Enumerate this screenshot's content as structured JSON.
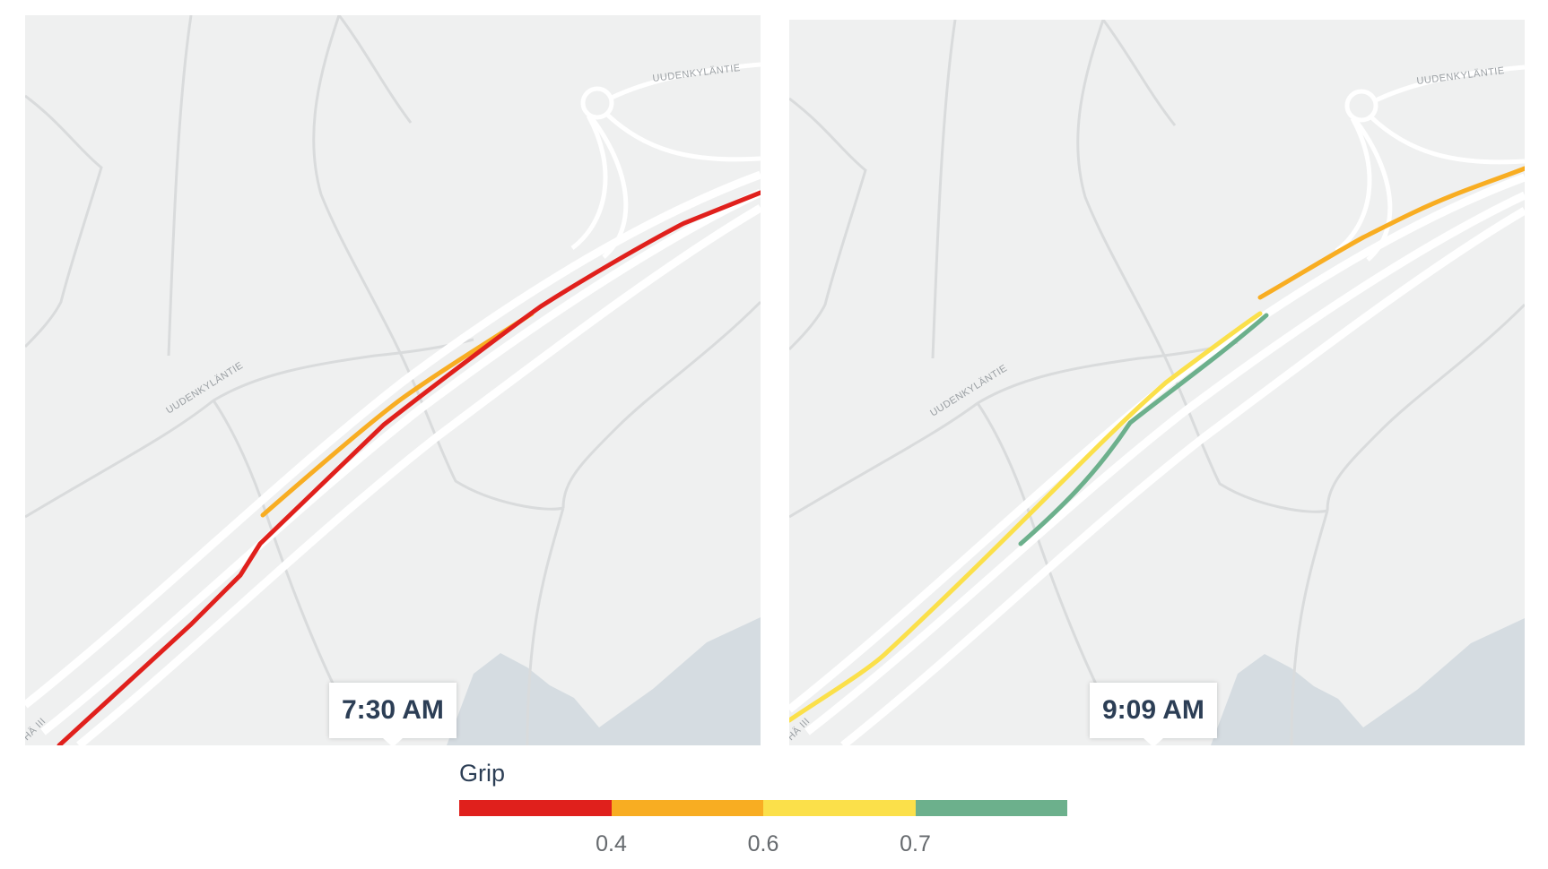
{
  "maps": [
    {
      "time_label": "7:30 AM",
      "road_labels": [
        "UUDENKYLÄNTIE",
        "UUDENKYLÄNTIE",
        "HÄ III"
      ]
    },
    {
      "time_label": "9:09 AM",
      "road_labels": [
        "UUDENKYLÄNTIE",
        "UUDENKYLÄNTIE",
        "HÄ III"
      ]
    }
  ],
  "legend": {
    "title": "Grip",
    "segments": [
      {
        "color": "#e0201c"
      },
      {
        "color": "#f8ad22"
      },
      {
        "color": "#fbe04a"
      },
      {
        "color": "#6cb08c"
      }
    ],
    "ticks": [
      "0.4",
      "0.6",
      "0.7"
    ]
  },
  "colors": {
    "map_background": "#eff0f0",
    "road": "#ffffff",
    "minor_road": "#d9dbdc",
    "water": "#d5dce1",
    "grip_poor": "#e0201c",
    "grip_fair": "#f8ad22",
    "grip_good": "#fbe04a",
    "grip_excellent": "#6cb08c"
  }
}
